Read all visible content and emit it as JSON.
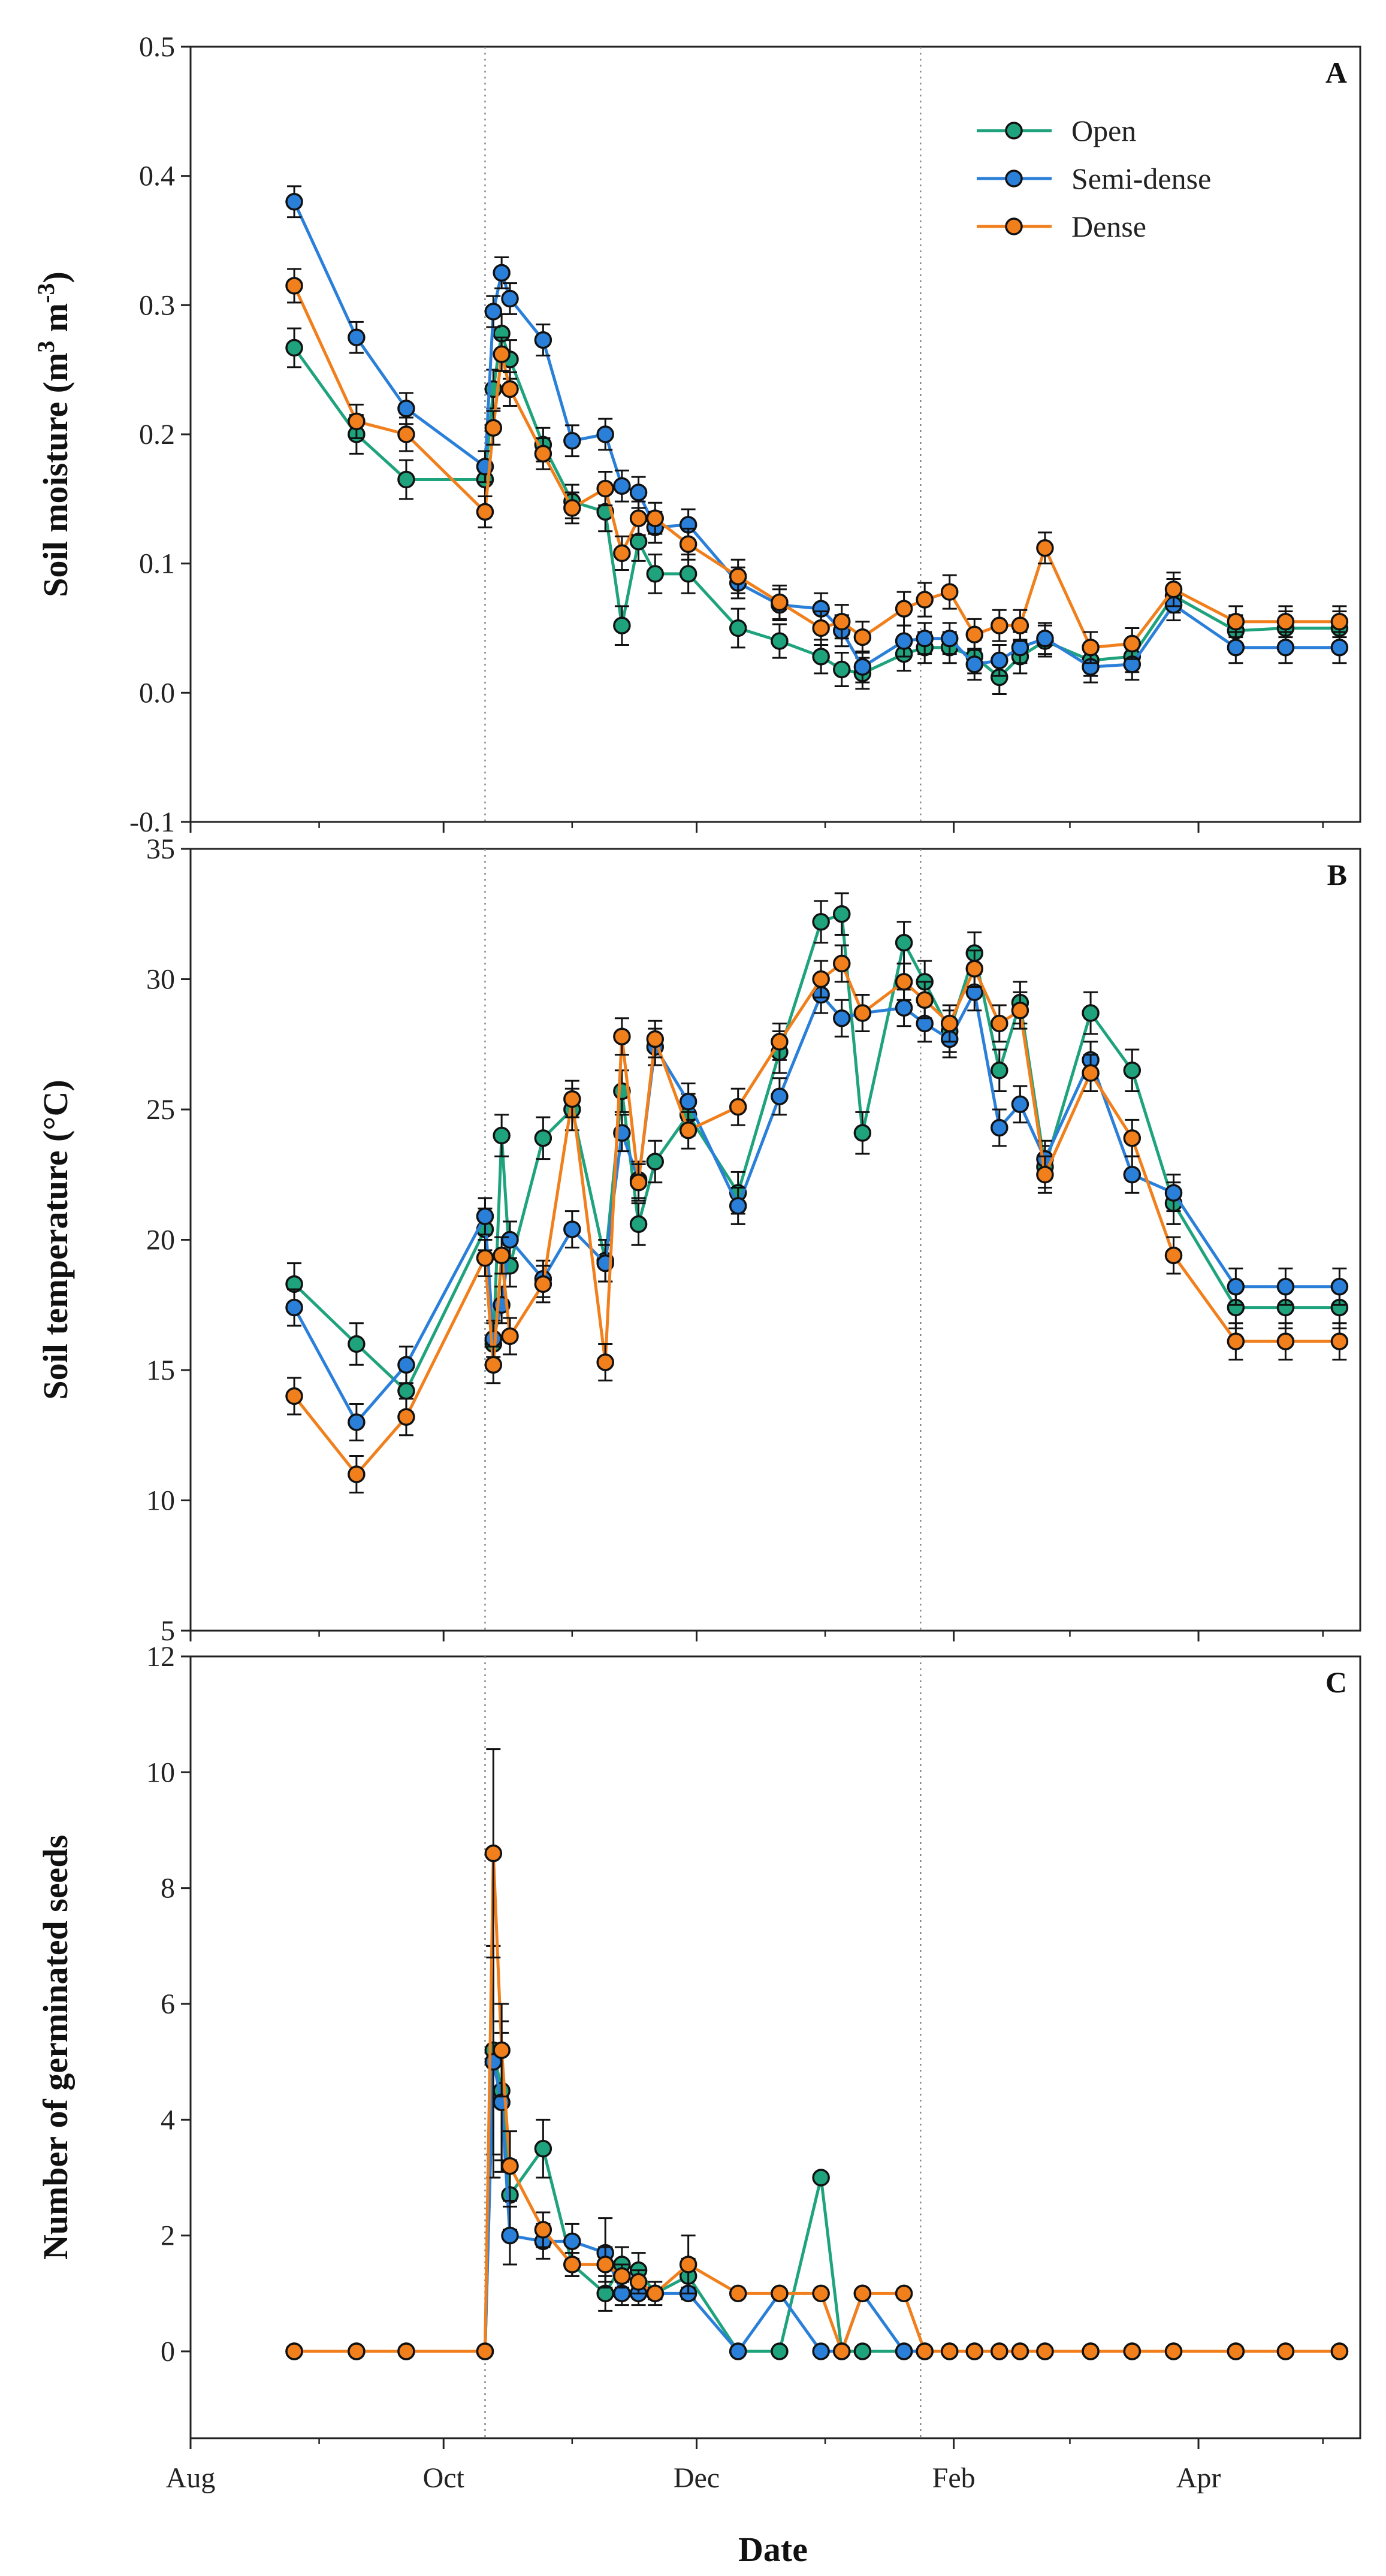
{
  "colors": {
    "open": "#1fa37d",
    "semi_dense": "#2a7fd9",
    "dense": "#f07f1c",
    "axis": "#222222",
    "reference_line": "#888888"
  },
  "legend": [
    "Open",
    "Semi-dense",
    "Dense"
  ],
  "xlabel": "Date",
  "chart_data": [
    {
      "type": "line",
      "panel": "A",
      "ylabel": "Soil moisture (m3 m-3)",
      "ylim": [
        -0.1,
        0.5
      ],
      "yticks": [
        "-0.1",
        "0.0",
        "0.1",
        "0.2",
        "0.3",
        "0.4",
        "0.5"
      ],
      "xticks": [
        "Aug",
        "Oct",
        "Dec",
        "Feb",
        "Apr"
      ],
      "x": [
        "Aug 26",
        "Sep 10",
        "Sep 22",
        "Oct 11",
        "Oct 13",
        "Oct 15",
        "Oct 17",
        "Oct 25",
        "Nov 1",
        "Nov 9",
        "Nov 13",
        "Nov 17",
        "Nov 21",
        "Nov 29",
        "Dec 11",
        "Dec 21",
        "Dec 31",
        "Jan 5",
        "Jan 10",
        "Jan 20",
        "Jan 25",
        "Jan 31",
        "Feb 6",
        "Feb 12",
        "Feb 17",
        "Feb 23",
        "Mar 6",
        "Mar 16",
        "Mar 26",
        "Apr 10",
        "Apr 22",
        "May 5"
      ],
      "reference_lines_x": [
        "Oct 11",
        "Jan 24"
      ],
      "series": [
        {
          "name": "Open",
          "values": [
            0.267,
            0.2,
            0.165,
            0.165,
            0.235,
            0.278,
            0.258,
            0.192,
            0.148,
            0.14,
            0.052,
            0.117,
            0.092,
            0.092,
            0.05,
            0.04,
            0.028,
            0.018,
            0.015,
            0.03,
            0.035,
            0.035,
            0.028,
            0.012,
            0.028,
            0.04,
            0.025,
            0.028,
            0.075,
            0.048,
            0.05,
            0.05
          ],
          "errors": [
            0.015,
            0.015,
            0.015,
            0.013,
            0.015,
            0.015,
            0.015,
            0.013,
            0.013,
            0.015,
            0.015,
            0.015,
            0.015,
            0.015,
            0.015,
            0.013,
            0.013,
            0.013,
            0.012,
            0.013,
            0.012,
            0.012,
            0.013,
            0.013,
            0.013,
            0.012,
            0.012,
            0.012,
            0.013,
            0.012,
            0.013,
            0.013
          ]
        },
        {
          "name": "Semi-dense",
          "values": [
            0.38,
            0.275,
            0.22,
            0.175,
            0.295,
            0.325,
            0.305,
            0.273,
            0.195,
            0.2,
            0.16,
            0.155,
            0.128,
            0.13,
            0.085,
            0.068,
            0.065,
            0.048,
            0.02,
            0.04,
            0.042,
            0.042,
            0.022,
            0.025,
            0.035,
            0.042,
            0.02,
            0.022,
            0.068,
            0.035,
            0.035,
            0.035
          ],
          "errors": [
            0.012,
            0.012,
            0.012,
            0.012,
            0.012,
            0.012,
            0.012,
            0.012,
            0.012,
            0.012,
            0.012,
            0.012,
            0.012,
            0.012,
            0.012,
            0.012,
            0.012,
            0.012,
            0.012,
            0.012,
            0.012,
            0.012,
            0.012,
            0.012,
            0.012,
            0.012,
            0.012,
            0.012,
            0.012,
            0.012,
            0.012,
            0.012
          ]
        },
        {
          "name": "Dense",
          "values": [
            0.315,
            0.21,
            0.2,
            0.14,
            0.205,
            0.262,
            0.235,
            0.185,
            0.143,
            0.158,
            0.108,
            0.135,
            0.135,
            0.115,
            0.09,
            0.07,
            0.05,
            0.055,
            0.043,
            0.065,
            0.072,
            0.078,
            0.045,
            0.052,
            0.052,
            0.112,
            0.035,
            0.038,
            0.08,
            0.055,
            0.055,
            0.055
          ],
          "errors": [
            0.013,
            0.013,
            0.013,
            0.012,
            0.013,
            0.013,
            0.013,
            0.012,
            0.012,
            0.013,
            0.013,
            0.013,
            0.012,
            0.012,
            0.013,
            0.013,
            0.013,
            0.013,
            0.012,
            0.013,
            0.013,
            0.013,
            0.012,
            0.012,
            0.012,
            0.012,
            0.012,
            0.012,
            0.013,
            0.012,
            0.012,
            0.012
          ]
        }
      ]
    },
    {
      "type": "line",
      "panel": "B",
      "ylabel": "Soil temperature (°C)",
      "ylim": [
        5,
        35
      ],
      "yticks": [
        "5",
        "10",
        "15",
        "20",
        "25",
        "30",
        "35"
      ],
      "xticks": [
        "Aug",
        "Oct",
        "Dec",
        "Feb",
        "Apr"
      ],
      "x": [
        "Aug 26",
        "Sep 10",
        "Sep 22",
        "Oct 11",
        "Oct 13",
        "Oct 15",
        "Oct 17",
        "Oct 25",
        "Nov 1",
        "Nov 9",
        "Nov 13",
        "Nov 17",
        "Nov 21",
        "Nov 29",
        "Dec 11",
        "Dec 21",
        "Dec 31",
        "Jan 5",
        "Jan 10",
        "Jan 20",
        "Jan 25",
        "Jan 31",
        "Feb 6",
        "Feb 12",
        "Feb 17",
        "Feb 23",
        "Mar 6",
        "Mar 16",
        "Mar 26",
        "Apr 10",
        "Apr 22",
        "May 5"
      ],
      "reference_lines_x": [
        "Oct 11",
        "Jan 24"
      ],
      "series": [
        {
          "name": "Open",
          "values": [
            18.3,
            16.0,
            14.2,
            20.4,
            16.0,
            24.0,
            19.0,
            23.9,
            25.0,
            19.2,
            25.7,
            20.6,
            23.0,
            24.8,
            21.8,
            27.2,
            32.2,
            32.5,
            24.1,
            31.4,
            29.9,
            28.0,
            31.0,
            26.5,
            29.1,
            22.8,
            28.7,
            26.5,
            21.4,
            17.4,
            17.4,
            17.4
          ],
          "errors": [
            0.8,
            0.8,
            0.8,
            0.8,
            0.8,
            0.8,
            0.8,
            0.8,
            0.8,
            0.8,
            0.8,
            0.8,
            0.8,
            0.8,
            0.8,
            0.8,
            0.8,
            0.8,
            0.8,
            0.8,
            0.8,
            0.8,
            0.8,
            0.8,
            0.8,
            0.8,
            0.8,
            0.8,
            0.8,
            0.8,
            0.8,
            0.8
          ]
        },
        {
          "name": "Semi-dense",
          "values": [
            17.4,
            13.0,
            15.2,
            20.9,
            16.2,
            17.5,
            20.0,
            18.5,
            20.4,
            19.1,
            24.1,
            22.3,
            27.4,
            25.3,
            21.3,
            25.5,
            29.4,
            28.5,
            28.7,
            28.9,
            28.3,
            27.7,
            29.5,
            24.3,
            25.2,
            23.1,
            26.9,
            22.5,
            21.8,
            18.2,
            18.2,
            18.2
          ],
          "errors": [
            0.7,
            0.7,
            0.7,
            0.7,
            0.7,
            0.7,
            0.7,
            0.7,
            0.7,
            0.7,
            0.7,
            0.7,
            0.7,
            0.7,
            0.7,
            0.7,
            0.7,
            0.7,
            0.7,
            0.7,
            0.7,
            0.7,
            0.7,
            0.7,
            0.7,
            0.7,
            0.7,
            0.7,
            0.7,
            0.7,
            0.7,
            0.7
          ]
        },
        {
          "name": "Dense",
          "values": [
            14.0,
            11.0,
            13.2,
            19.3,
            15.2,
            19.4,
            16.3,
            18.3,
            25.4,
            15.3,
            27.8,
            22.2,
            27.7,
            24.2,
            25.1,
            27.6,
            30.0,
            30.6,
            28.7,
            29.9,
            29.2,
            28.3,
            30.4,
            28.3,
            28.8,
            22.5,
            26.4,
            23.9,
            19.4,
            16.1,
            16.1,
            16.1
          ],
          "errors": [
            0.7,
            0.7,
            0.7,
            0.7,
            0.7,
            0.7,
            0.7,
            0.7,
            0.7,
            0.7,
            0.7,
            0.7,
            0.7,
            0.7,
            0.7,
            0.7,
            0.7,
            0.7,
            0.7,
            0.7,
            0.7,
            0.7,
            0.7,
            0.7,
            0.7,
            0.7,
            0.7,
            0.7,
            0.7,
            0.7,
            0.7,
            0.7
          ]
        }
      ]
    },
    {
      "type": "line",
      "panel": "C",
      "ylabel": "Number of germinated seeds",
      "ylim": [
        -1.5,
        12
      ],
      "yticks": [
        "0",
        "2",
        "4",
        "6",
        "8",
        "10",
        "12"
      ],
      "xticks": [
        "Aug",
        "Oct",
        "Dec",
        "Feb",
        "Apr"
      ],
      "x": [
        "Aug 26",
        "Sep 10",
        "Sep 22",
        "Oct 11",
        "Oct 13",
        "Oct 15",
        "Oct 17",
        "Oct 25",
        "Nov 1",
        "Nov 9",
        "Nov 13",
        "Nov 17",
        "Nov 21",
        "Nov 29",
        "Dec 11",
        "Dec 21",
        "Dec 31",
        "Jan 5",
        "Jan 10",
        "Jan 20",
        "Jan 25",
        "Jan 31",
        "Feb 6",
        "Feb 12",
        "Feb 17",
        "Feb 23",
        "Mar 6",
        "Mar 16",
        "Mar 26",
        "Apr 10",
        "Apr 22",
        "May 5"
      ],
      "reference_lines_x": [
        "Oct 11",
        "Jan 24"
      ],
      "series": [
        {
          "name": "Open",
          "values": [
            0,
            0,
            0,
            0,
            5.2,
            4.5,
            2.7,
            3.5,
            1.5,
            1.0,
            1.5,
            1.4,
            1.0,
            1.3,
            0,
            0,
            3.0,
            0,
            0,
            0,
            0,
            0,
            0,
            0,
            0,
            0,
            0,
            0,
            0,
            0,
            0,
            0
          ],
          "errors": [
            0,
            0,
            0,
            0,
            1.8,
            1.2,
            0.6,
            0.5,
            0.2,
            0.3,
            0.3,
            0.3,
            0.2,
            0.3,
            0,
            0,
            0,
            0,
            0,
            0,
            0,
            0,
            0,
            0,
            0,
            0,
            0,
            0,
            0,
            0,
            0,
            0
          ]
        },
        {
          "name": "Semi-dense",
          "values": [
            0,
            0,
            0,
            0,
            5.0,
            4.3,
            2.0,
            1.9,
            1.9,
            1.7,
            1.0,
            1.0,
            1.0,
            1.0,
            0,
            1.0,
            0,
            0,
            1.0,
            0,
            0,
            0,
            0,
            0,
            0,
            0,
            0,
            0,
            0,
            0,
            0,
            0
          ],
          "errors": [
            0,
            0,
            0,
            0,
            2.0,
            1.2,
            0.5,
            0.3,
            0.3,
            0.6,
            0.2,
            0.2,
            0.1,
            0.1,
            0,
            0,
            0,
            0,
            0,
            0,
            0,
            0,
            0,
            0,
            0,
            0,
            0,
            0,
            0,
            0,
            0,
            0
          ]
        },
        {
          "name": "Dense",
          "values": [
            0,
            0,
            0,
            0,
            8.6,
            5.2,
            3.2,
            2.1,
            1.5,
            1.5,
            1.3,
            1.2,
            1.0,
            1.5,
            1.0,
            1.0,
            1.0,
            0,
            1.0,
            1.0,
            0,
            0,
            0,
            0,
            0,
            0,
            0,
            0,
            0,
            0,
            0,
            0
          ],
          "errors": [
            0,
            0,
            0,
            0,
            1.8,
            0.8,
            0.6,
            0.3,
            0.2,
            0.3,
            0.2,
            0.2,
            0.1,
            0.5,
            0,
            0,
            0,
            0,
            0,
            0,
            0,
            0,
            0,
            0,
            0,
            0,
            0,
            0,
            0,
            0,
            0,
            0
          ]
        }
      ]
    }
  ]
}
